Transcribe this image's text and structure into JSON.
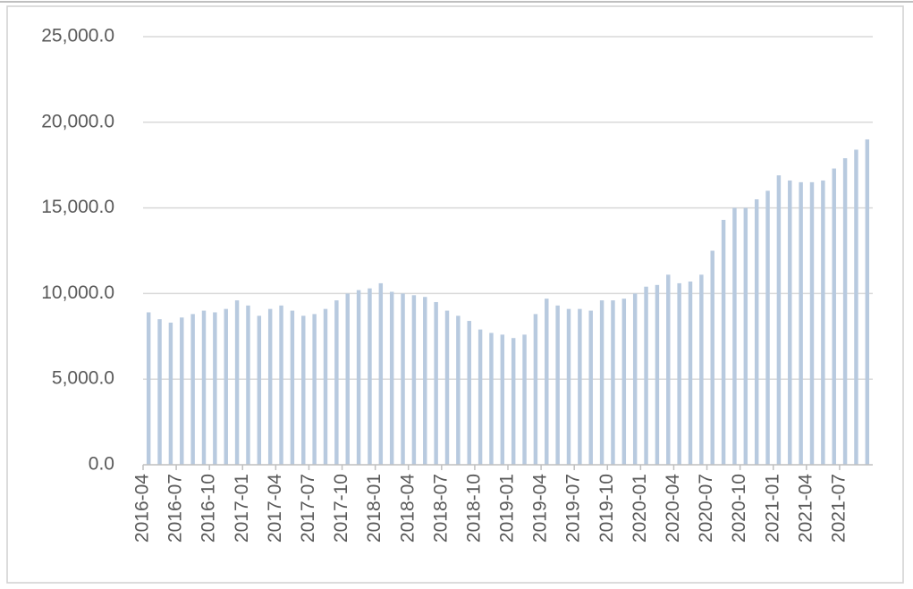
{
  "chart_data": {
    "type": "bar",
    "color": "#b8cadf",
    "categories": [
      "2016-04",
      null,
      null,
      "2016-07",
      null,
      null,
      "2016-10",
      null,
      null,
      "2017-01",
      null,
      null,
      "2017-04",
      null,
      null,
      "2017-07",
      null,
      null,
      "2017-10",
      null,
      null,
      "2018-01",
      null,
      null,
      "2018-04",
      null,
      null,
      "2018-07",
      null,
      null,
      "2018-10",
      null,
      null,
      "2019-01",
      null,
      null,
      "2019-04",
      null,
      null,
      "2019-07",
      null,
      null,
      "2019-10",
      null,
      null,
      "2020-01",
      null,
      null,
      "2020-04",
      null,
      null,
      "2020-07",
      null,
      null,
      "2020-10",
      null,
      null,
      "2021-01",
      null,
      null,
      "2021-04",
      null,
      null,
      "2021-07",
      null,
      null
    ],
    "values": [
      8900,
      8500,
      8300,
      8600,
      8800,
      9000,
      8900,
      9100,
      9600,
      9300,
      8700,
      9100,
      9300,
      9000,
      8700,
      8800,
      9100,
      9600,
      10000,
      10200,
      10300,
      10600,
      10100,
      10000,
      9900,
      9800,
      9500,
      9000,
      8700,
      8400,
      7900,
      7700,
      7600,
      7400,
      7600,
      8800,
      9700,
      9300,
      9100,
      9100,
      9000,
      9600,
      9600,
      9700,
      10000,
      10400,
      10500,
      11100,
      10600,
      10700,
      11100,
      12500,
      14300,
      15000,
      15000,
      15500,
      16000,
      16900,
      16600,
      16500,
      16500,
      16600,
      17300,
      17900,
      18400,
      19000
    ],
    "ylim": [
      0,
      25000
    ],
    "yticks": [
      {
        "value": 0,
        "label": "0.0"
      },
      {
        "value": 5000,
        "label": "5,000.0"
      },
      {
        "value": 10000,
        "label": "10,000.0"
      },
      {
        "value": 15000,
        "label": "15,000.0"
      },
      {
        "value": 20000,
        "label": "20,000.0"
      },
      {
        "value": 25000,
        "label": "25,000.0"
      }
    ],
    "grid": true
  }
}
